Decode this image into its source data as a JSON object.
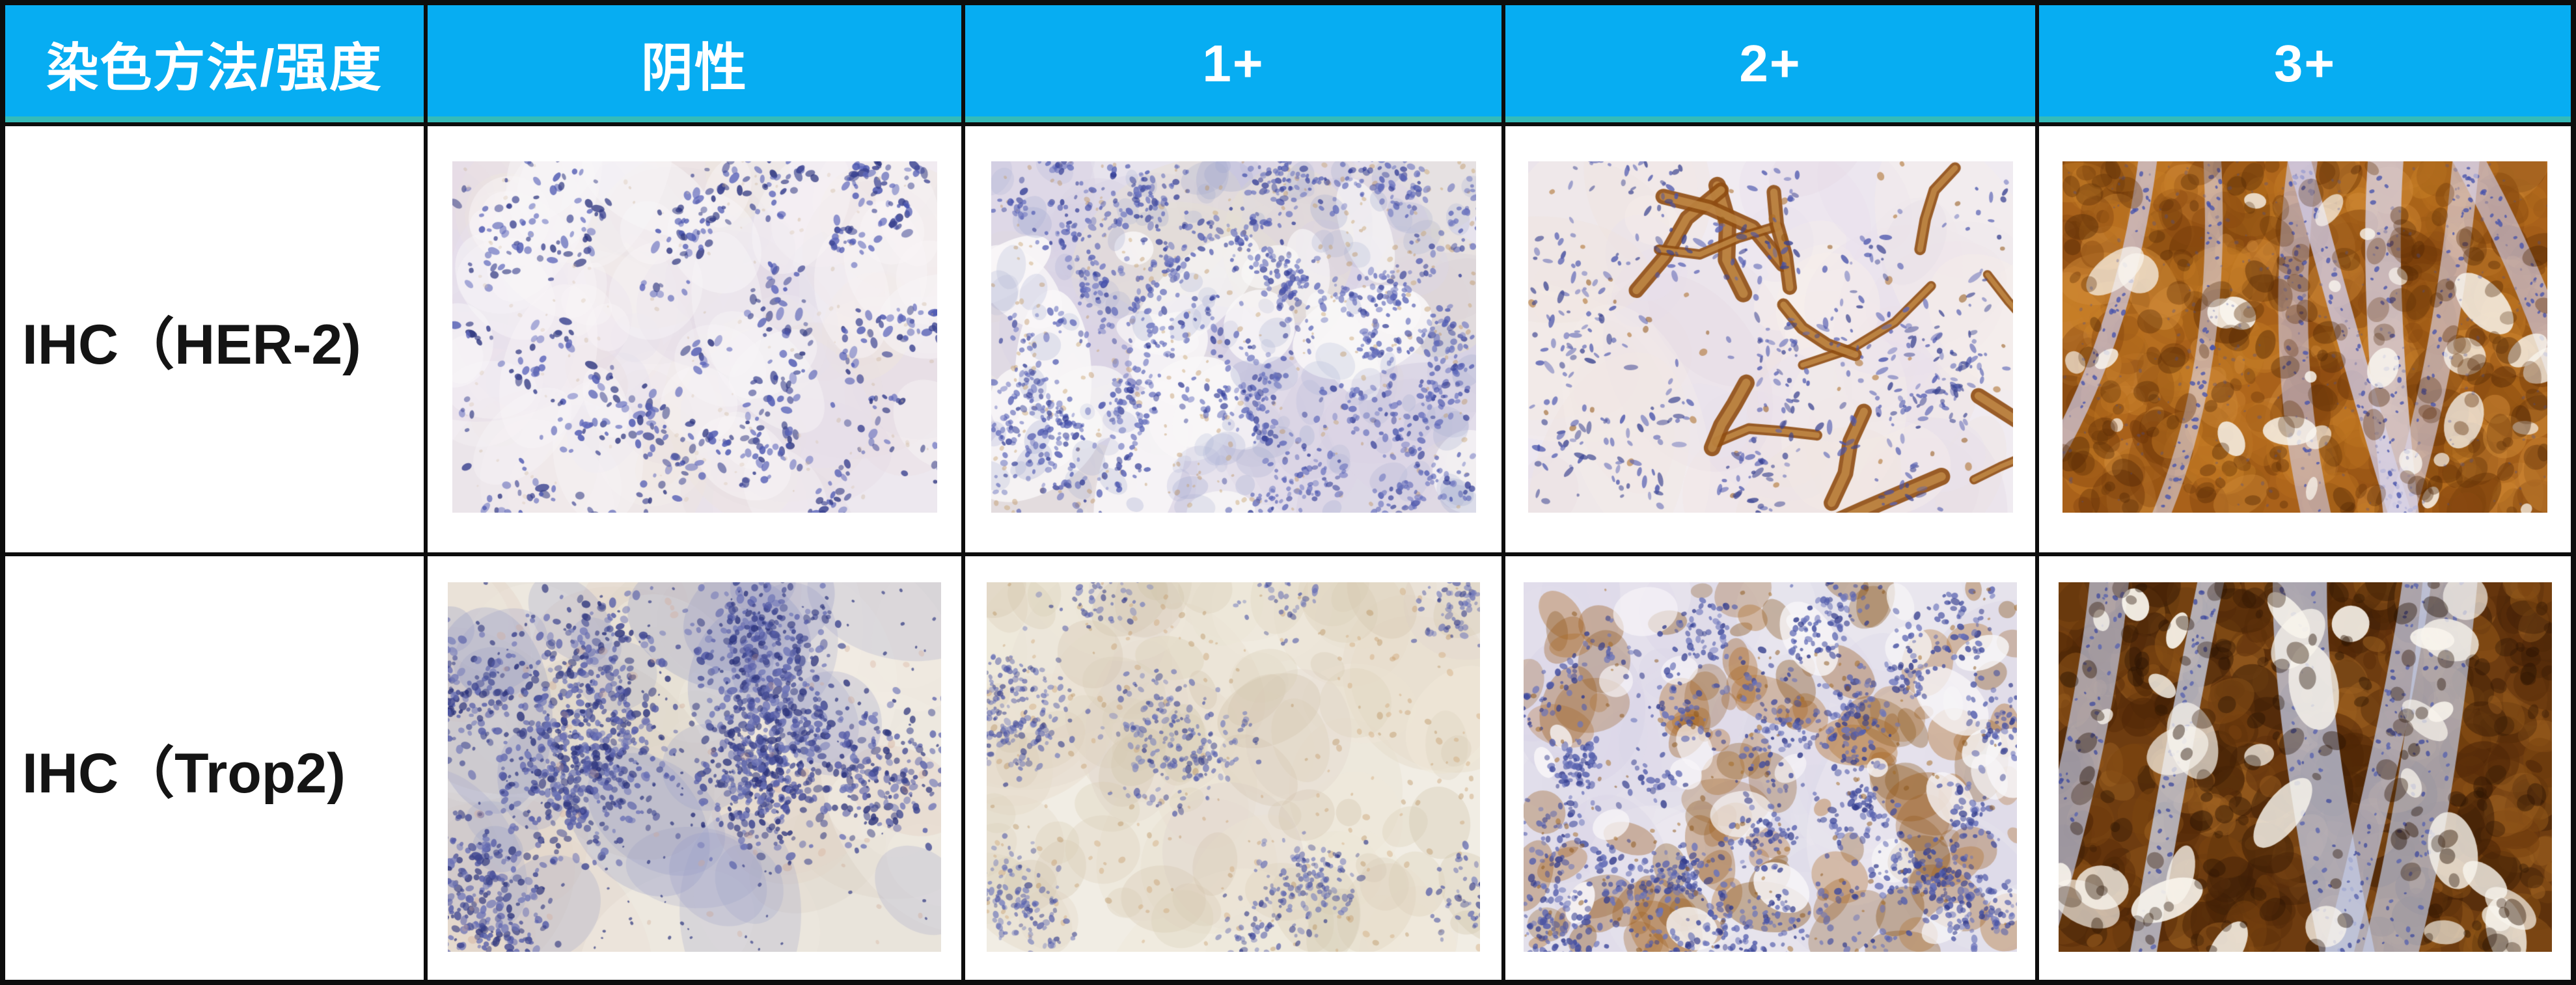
{
  "page": {
    "background": "#ffffff",
    "grid_line_color": "#0d0d0d"
  },
  "table": {
    "header": {
      "bg": "#07ADF2",
      "accent": "#35BBB9",
      "text_color": "#FFFFFF",
      "columns": [
        {
          "label": "染色方法/强度"
        },
        {
          "label": "阴性"
        },
        {
          "label": "1+"
        },
        {
          "label": "2+"
        },
        {
          "label": "3+"
        }
      ]
    },
    "rows": [
      {
        "label": "IHC（HER-2)",
        "cells": [
          "her2_negative",
          "her2_1plus",
          "her2_2plus",
          "her2_3plus"
        ]
      },
      {
        "label": "IHC（Trop2)",
        "cells": [
          "trop2_negative",
          "trop2_1plus",
          "trop2_2plus",
          "trop2_3plus"
        ]
      }
    ]
  },
  "micrographs": {
    "her2_negative": {
      "name": "IHC HER-2 阴性 micrograph",
      "seed": 11,
      "bg": "#EDE8EF",
      "layers": [
        {
          "type": "patches",
          "count": 70,
          "colors": [
            "#E3D9E5",
            "#F5F0F3",
            "#E9DFE2",
            "#EFE6DB",
            "#E6E0EC"
          ],
          "alpha": 0.45,
          "rmin": 35,
          "rmax": 120,
          "elong": 1.8
        },
        {
          "type": "patches",
          "count": 40,
          "colors": [
            "#F8F5F7"
          ],
          "alpha": 0.55,
          "rmin": 25,
          "rmax": 70,
          "elong": 2.2
        },
        {
          "type": "nuclei",
          "count": 680,
          "clusters": 75,
          "spread": 60,
          "colors": [
            "#4A55B0",
            "#39418F",
            "#5E67BB",
            "#2F3780"
          ],
          "rmin": 2.5,
          "rmax": 6,
          "elong": 1.9,
          "alpha": 0.85
        },
        {
          "type": "speckle",
          "count": 130,
          "colors": [
            "#C9B295",
            "#D7C3AC"
          ],
          "rmin": 1.5,
          "rmax": 4,
          "alpha": 0.35
        }
      ]
    },
    "her2_1plus": {
      "name": "IHC HER-2 1+ micrograph",
      "seed": 22,
      "bg": "#E7E3ED",
      "layers": [
        {
          "type": "patches",
          "count": 60,
          "colors": [
            "#DCD5E6",
            "#CFC9DE",
            "#E7DFD2",
            "#D8D2E4"
          ],
          "alpha": 0.5,
          "rmin": 35,
          "rmax": 110,
          "elong": 2
        },
        {
          "type": "lumens",
          "count": 24,
          "colors": [
            "#F8F6F7"
          ],
          "alpha": 0.95,
          "rmin": 22,
          "rmax": 70,
          "elong": 2.4
        },
        {
          "type": "patches",
          "count": 110,
          "colors": [
            "#AEB4D6",
            "#9FA7CE"
          ],
          "alpha": 0.3,
          "rmin": 9,
          "rmax": 26,
          "elong": 1.6
        },
        {
          "type": "speckle",
          "count": 280,
          "colors": [
            "#B98D56",
            "#C49A60"
          ],
          "rmin": 2,
          "rmax": 5,
          "alpha": 0.4
        },
        {
          "type": "nuclei",
          "count": 1550,
          "clusters": 95,
          "spread": 58,
          "colors": [
            "#4A55AE",
            "#343E96",
            "#5C66B8",
            "#6F77C0"
          ],
          "rmin": 2.2,
          "rmax": 5,
          "elong": 1.6,
          "alpha": 0.8
        }
      ]
    },
    "her2_2plus": {
      "name": "IHC HER-2 2+ micrograph",
      "seed": 33,
      "bg": "#F0EBF1",
      "layers": [
        {
          "type": "patches",
          "count": 50,
          "colors": [
            "#E6DCE5",
            "#F6EEEA",
            "#E9E1ED",
            "#EFE3DF"
          ],
          "alpha": 0.5,
          "rmin": 35,
          "rmax": 120,
          "elong": 2
        },
        {
          "type": "ribbons",
          "count": 15,
          "stroke": "#8F4D12",
          "fill": "#C8924C",
          "wmin": 13,
          "wmax": 28,
          "lmin": 110,
          "lmax": 240,
          "alpha": 0.9
        },
        {
          "type": "speckle",
          "count": 45,
          "colors": [
            "#A96A22",
            "#8F5414"
          ],
          "rmin": 3,
          "rmax": 7,
          "alpha": 0.55
        },
        {
          "type": "nuclei",
          "count": 500,
          "clusters": 65,
          "spread": 75,
          "colors": [
            "#4853AB",
            "#39428F",
            "#5B64B4"
          ],
          "rmin": 2,
          "rmax": 4.5,
          "elong": 2.8,
          "alpha": 0.8
        }
      ]
    },
    "her2_3plus": {
      "name": "IHC HER-2 3+ micrograph",
      "seed": 44,
      "bg": "#A9611A",
      "layers": [
        {
          "type": "patches",
          "count": 460,
          "colors": [
            "#8A4A10",
            "#C57D26",
            "#9C5A16",
            "#D08A38",
            "#6E3708",
            "#B86F1E"
          ],
          "alpha": 0.55,
          "rmin": 8,
          "rmax": 42,
          "elong": 1.8
        },
        {
          "type": "bands",
          "count": 7,
          "colors": [
            "#D9D3E7",
            "#CFC9E2"
          ],
          "wmin": 24,
          "wmax": 58,
          "alpha": 0.8,
          "dots": {
            "count": 45,
            "colors": [
              "#4A55AB"
            ],
            "rmin": 1.5,
            "rmax": 3.5,
            "alpha": 0.8
          }
        },
        {
          "type": "lumens",
          "count": 28,
          "colors": [
            "#F9F5EE"
          ],
          "alpha": 0.9,
          "rmin": 8,
          "rmax": 32,
          "elong": 2.2
        },
        {
          "type": "patches",
          "count": 170,
          "colors": [
            "#5E2E06",
            "#4A2203"
          ],
          "alpha": 0.4,
          "rmin": 6,
          "rmax": 20,
          "elong": 1.6
        },
        {
          "type": "speckle",
          "count": 280,
          "colors": [
            "#424D97"
          ],
          "rmin": 1.5,
          "rmax": 3.5,
          "alpha": 0.3
        }
      ]
    },
    "trop2_negative": {
      "name": "IHC Trop2 阴性 micrograph",
      "seed": 55,
      "bg": "#E9E4DB",
      "layers": [
        {
          "type": "patches",
          "count": 40,
          "colors": [
            "#DED5C8",
            "#F2EDE4",
            "#E4D5C9",
            "#EFEAE0"
          ],
          "alpha": 0.5,
          "rmin": 45,
          "rmax": 130,
          "elong": 1.8
        },
        {
          "type": "patches",
          "count": 28,
          "colors": [
            "#9BA0C9",
            "#8D93C4"
          ],
          "alpha": 0.28,
          "rmin": 30,
          "rmax": 95,
          "elong": 1.7
        },
        {
          "type": "nuclei",
          "count": 2100,
          "clusters": 13,
          "spread": 150,
          "colors": [
            "#3E4690",
            "#2C337B",
            "#565DA8",
            "#6A71B5"
          ],
          "rmin": 2.5,
          "rmax": 6,
          "elong": 1.5,
          "alpha": 0.85
        },
        {
          "type": "speckle",
          "count": 160,
          "colors": [
            "#3A4288",
            "#2E367E"
          ],
          "rmin": 1.5,
          "rmax": 3.5,
          "alpha": 0.7
        },
        {
          "type": "speckle",
          "count": 60,
          "colors": [
            "#D3A78F",
            "#C99C86"
          ],
          "rmin": 3,
          "rmax": 8,
          "alpha": 0.3
        }
      ]
    },
    "trop2_1plus": {
      "name": "IHC Trop2 1+ micrograph",
      "seed": 66,
      "bg": "#F1EDE4",
      "layers": [
        {
          "type": "patches",
          "count": 45,
          "colors": [
            "#E6DCCB",
            "#EFE8DA",
            "#E2D8CF",
            "#EAE3D3"
          ],
          "alpha": 0.55,
          "rmin": 45,
          "rmax": 120,
          "elong": 1.8
        },
        {
          "type": "patches",
          "count": 70,
          "colors": [
            "#D9CDB5",
            "#D2C4AC"
          ],
          "alpha": 0.35,
          "rmin": 18,
          "rmax": 55,
          "elong": 1.7
        },
        {
          "type": "speckle",
          "count": 220,
          "colors": [
            "#C09058",
            "#B08048",
            "#CB9C64"
          ],
          "rmin": 2,
          "rmax": 6,
          "alpha": 0.35
        },
        {
          "type": "nuclei",
          "count": 950,
          "clusters": 15,
          "spread": 105,
          "colors": [
            "#4C55A5",
            "#5F68B2",
            "#39418C",
            "#7079BC"
          ],
          "rmin": 2.2,
          "rmax": 5,
          "elong": 1.5,
          "alpha": 0.7
        }
      ]
    },
    "trop2_2plus": {
      "name": "IHC Trop2 2+ micrograph",
      "seed": 77,
      "bg": "#E6E3EC",
      "layers": [
        {
          "type": "patches",
          "count": 50,
          "colors": [
            "#D8D4E6",
            "#EDEAF0",
            "#DFDBEA"
          ],
          "alpha": 0.5,
          "rmin": 35,
          "rmax": 105,
          "elong": 1.8
        },
        {
          "type": "patches",
          "count": 120,
          "colors": [
            "#9A5C1D",
            "#B06E28",
            "#855013"
          ],
          "alpha": 0.4,
          "rmin": 9,
          "rmax": 42,
          "elong": 1.9
        },
        {
          "type": "lumens",
          "count": 28,
          "colors": [
            "#F7F5F7"
          ],
          "alpha": 0.95,
          "rmin": 13,
          "rmax": 42,
          "elong": 1.8
        },
        {
          "type": "nuclei",
          "count": 1650,
          "clusters": 85,
          "spread": 68,
          "colors": [
            "#414C9E",
            "#333C8C",
            "#555FAD",
            "#6A73BA"
          ],
          "rmin": 2.2,
          "rmax": 5.2,
          "elong": 1.5,
          "alpha": 0.85
        },
        {
          "type": "speckle",
          "count": 130,
          "colors": [
            "#8A5418",
            "#A1671F"
          ],
          "rmin": 2,
          "rmax": 5,
          "alpha": 0.5
        }
      ]
    },
    "trop2_3plus": {
      "name": "IHC Trop2 3+ micrograph",
      "seed": 88,
      "bg": "#6E3C10",
      "layers": [
        {
          "type": "patches",
          "count": 520,
          "colors": [
            "#5C2E0A",
            "#8F5518",
            "#3F1F06",
            "#9C6020",
            "#7B4410",
            "#4E2606"
          ],
          "alpha": 0.6,
          "rmin": 8,
          "rmax": 38,
          "elong": 1.8
        },
        {
          "type": "bands",
          "count": 5,
          "colors": [
            "#CBD2E7",
            "#C2CAE3"
          ],
          "wmin": 38,
          "wmax": 85,
          "alpha": 0.88,
          "dots": {
            "count": 60,
            "colors": [
              "#5A64AE",
              "#434D9C"
            ],
            "rmin": 1.5,
            "rmax": 3.5,
            "alpha": 0.8
          }
        },
        {
          "type": "lumens",
          "count": 32,
          "colors": [
            "#F8F4EC"
          ],
          "alpha": 0.95,
          "rmin": 10,
          "rmax": 38,
          "elong": 2.3
        },
        {
          "type": "patches",
          "count": 150,
          "colors": [
            "#2E1503",
            "#241003"
          ],
          "alpha": 0.45,
          "rmin": 5,
          "rmax": 16,
          "elong": 1.5
        }
      ]
    }
  }
}
